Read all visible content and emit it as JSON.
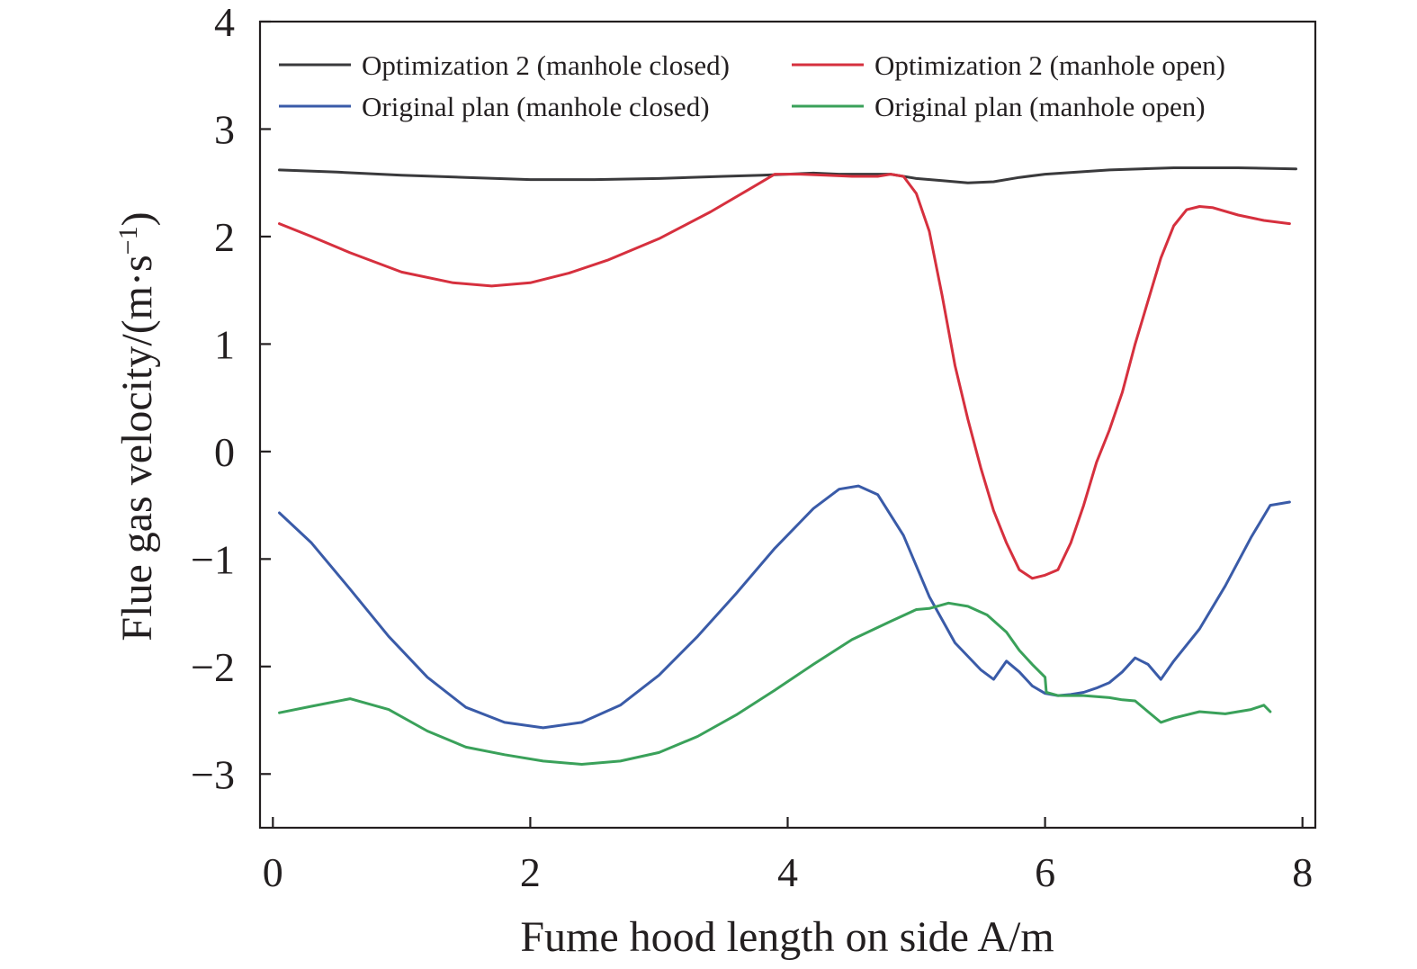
{
  "chart_data": {
    "type": "line",
    "title": "",
    "xlabel": "Fume hood length on side A/m",
    "ylabel": "Flue gas velocity/(m·s",
    "ylabel_sup": "−1",
    "ylabel_close": ")",
    "xlim": [
      -0.1,
      8.1
    ],
    "ylim": [
      -3.5,
      4
    ],
    "xticks": [
      0,
      2,
      4,
      6,
      8
    ],
    "xtick_labels": [
      "0",
      "2",
      "4",
      "6",
      "8"
    ],
    "yticks": [
      4,
      3,
      2,
      1,
      0,
      -1,
      -2,
      -3
    ],
    "ytick_labels": [
      "4",
      "3",
      "2",
      "1",
      "0",
      "−1",
      "−2",
      "−3"
    ],
    "grid": false,
    "legend_position": "top",
    "series": [
      {
        "name": "Optimization 2 (manhole closed)",
        "color": "#3a3a3c",
        "x": [
          0.05,
          0.5,
          1.0,
          1.5,
          2.0,
          2.5,
          3.0,
          3.5,
          3.8,
          4.0,
          4.2,
          4.4,
          4.6,
          4.8,
          5.0,
          5.2,
          5.4,
          5.6,
          5.8,
          6.0,
          6.5,
          7.0,
          7.5,
          7.95
        ],
        "y": [
          2.62,
          2.6,
          2.57,
          2.55,
          2.53,
          2.53,
          2.54,
          2.56,
          2.57,
          2.58,
          2.59,
          2.58,
          2.58,
          2.58,
          2.54,
          2.52,
          2.5,
          2.51,
          2.55,
          2.58,
          2.62,
          2.64,
          2.64,
          2.63
        ]
      },
      {
        "name": "Optimization 2 (manhole open)",
        "color": "#d6303e",
        "x": [
          0.05,
          0.3,
          0.6,
          1.0,
          1.4,
          1.7,
          2.0,
          2.3,
          2.6,
          3.0,
          3.4,
          3.7,
          3.9,
          4.1,
          4.3,
          4.5,
          4.7,
          4.8,
          4.9,
          5.0,
          5.1,
          5.2,
          5.3,
          5.4,
          5.5,
          5.6,
          5.7,
          5.8,
          5.9,
          6.0,
          6.1,
          6.2,
          6.3,
          6.4,
          6.5,
          6.6,
          6.7,
          6.8,
          6.9,
          7.0,
          7.1,
          7.2,
          7.3,
          7.5,
          7.7,
          7.9
        ],
        "y": [
          2.12,
          2.0,
          1.85,
          1.67,
          1.57,
          1.54,
          1.57,
          1.66,
          1.78,
          1.98,
          2.23,
          2.44,
          2.58,
          2.58,
          2.57,
          2.56,
          2.56,
          2.58,
          2.56,
          2.4,
          2.05,
          1.45,
          0.8,
          0.3,
          -0.15,
          -0.55,
          -0.85,
          -1.1,
          -1.18,
          -1.15,
          -1.1,
          -0.85,
          -0.5,
          -0.1,
          0.2,
          0.55,
          1.0,
          1.4,
          1.8,
          2.1,
          2.25,
          2.28,
          2.27,
          2.2,
          2.15,
          2.12
        ]
      },
      {
        "name": "Original plan (manhole closed)",
        "color": "#3a5ba8",
        "x": [
          0.05,
          0.3,
          0.6,
          0.9,
          1.2,
          1.5,
          1.8,
          2.1,
          2.4,
          2.7,
          3.0,
          3.3,
          3.6,
          3.9,
          4.2,
          4.4,
          4.55,
          4.7,
          4.9,
          5.1,
          5.3,
          5.5,
          5.6,
          5.7,
          5.8,
          5.9,
          6.0,
          6.1,
          6.2,
          6.3,
          6.4,
          6.5,
          6.6,
          6.7,
          6.8,
          6.9,
          7.0,
          7.2,
          7.4,
          7.6,
          7.75,
          7.9
        ],
        "y": [
          -0.57,
          -0.85,
          -1.28,
          -1.72,
          -2.1,
          -2.38,
          -2.52,
          -2.57,
          -2.52,
          -2.36,
          -2.08,
          -1.72,
          -1.32,
          -0.9,
          -0.53,
          -0.35,
          -0.32,
          -0.4,
          -0.78,
          -1.35,
          -1.78,
          -2.03,
          -2.12,
          -1.95,
          -2.05,
          -2.18,
          -2.25,
          -2.27,
          -2.26,
          -2.24,
          -2.2,
          -2.15,
          -2.05,
          -1.92,
          -1.98,
          -2.12,
          -1.95,
          -1.65,
          -1.25,
          -0.8,
          -0.5,
          -0.47
        ]
      },
      {
        "name": "Original plan (manhole open)",
        "color": "#3aa15a",
        "x": [
          0.05,
          0.3,
          0.6,
          0.9,
          1.2,
          1.5,
          1.8,
          2.1,
          2.4,
          2.7,
          3.0,
          3.3,
          3.6,
          3.9,
          4.2,
          4.5,
          4.8,
          5.0,
          5.1,
          5.25,
          5.4,
          5.55,
          5.7,
          5.8,
          5.9,
          6.0,
          6.01,
          6.1,
          6.2,
          6.3,
          6.4,
          6.5,
          6.6,
          6.7,
          6.8,
          6.9,
          7.0,
          7.2,
          7.4,
          7.6,
          7.7,
          7.75
        ],
        "y": [
          -2.43,
          -2.37,
          -2.3,
          -2.4,
          -2.6,
          -2.75,
          -2.82,
          -2.88,
          -2.91,
          -2.88,
          -2.8,
          -2.65,
          -2.45,
          -2.22,
          -1.98,
          -1.75,
          -1.58,
          -1.47,
          -1.46,
          -1.41,
          -1.44,
          -1.52,
          -1.68,
          -1.85,
          -1.98,
          -2.1,
          -2.24,
          -2.27,
          -2.27,
          -2.27,
          -2.28,
          -2.29,
          -2.31,
          -2.32,
          -2.42,
          -2.52,
          -2.48,
          -2.42,
          -2.44,
          -2.4,
          -2.36,
          -2.42
        ]
      }
    ]
  }
}
